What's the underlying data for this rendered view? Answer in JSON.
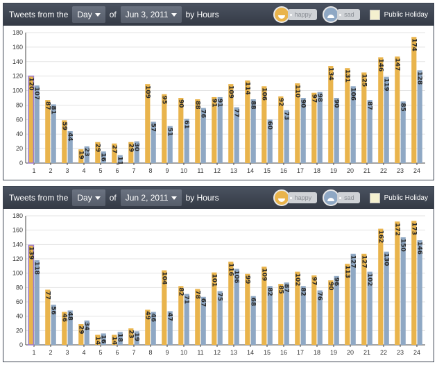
{
  "panels": [
    {
      "toolbar": {
        "prefix": "Tweets from the",
        "period": "Day",
        "of_label": "of",
        "date": "Jun 3, 2011",
        "suffix": "by Hours",
        "happy_label": "happy",
        "sad_label": "sad",
        "holiday_label": "Public Holiday"
      }
    },
    {
      "toolbar": {
        "prefix": "Tweets from the",
        "period": "Day",
        "of_label": "of",
        "date": "Jun 2, 2011",
        "suffix": "by Hours",
        "happy_label": "happy",
        "sad_label": "sad",
        "holiday_label": "Public Holiday"
      }
    }
  ],
  "colors": {
    "happy": "#e9b44c",
    "sad": "#8fa8c4",
    "highlight": "#9b7bd0"
  },
  "chart_data": [
    {
      "type": "bar",
      "categories": [
        1,
        2,
        3,
        4,
        5,
        6,
        7,
        8,
        9,
        10,
        11,
        12,
        13,
        14,
        15,
        16,
        17,
        18,
        19,
        20,
        21,
        22,
        23,
        24
      ],
      "series": [
        {
          "name": "happy",
          "values": [
            120,
            87,
            59,
            19,
            29,
            27,
            29,
            109,
            95,
            90,
            88,
            91,
            109,
            114,
            106,
            92,
            110,
            97,
            134,
            131,
            125,
            146,
            147,
            174
          ]
        },
        {
          "name": "sad",
          "values": [
            107,
            81,
            44,
            23,
            16,
            11,
            30,
            57,
            51,
            61,
            76,
            91,
            77,
            88,
            60,
            73,
            90,
            98,
            90,
            106,
            87,
            119,
            85,
            128
          ]
        }
      ],
      "highlight_index": 0,
      "ylim": [
        0,
        180
      ],
      "yticks": [
        0,
        20,
        40,
        60,
        80,
        100,
        120,
        140,
        160,
        180
      ],
      "grid": true
    },
    {
      "type": "bar",
      "categories": [
        1,
        2,
        3,
        4,
        5,
        6,
        7,
        8,
        9,
        10,
        11,
        12,
        13,
        14,
        15,
        16,
        17,
        18,
        19,
        20,
        21,
        22,
        23,
        24
      ],
      "series": [
        {
          "name": "happy",
          "values": [
            139,
            77,
            46,
            29,
            14,
            14,
            23,
            49,
            104,
            82,
            78,
            101,
            116,
            99,
            109,
            85,
            102,
            97,
            90,
            113,
            127,
            162,
            172,
            173
          ]
        },
        {
          "name": "sad",
          "values": [
            118,
            56,
            48,
            34,
            16,
            18,
            19,
            46,
            47,
            71,
            67,
            75,
            106,
            68,
            82,
            87,
            82,
            76,
            96,
            127,
            102,
            130,
            150,
            146
          ]
        }
      ],
      "highlight_index": 0,
      "ylim": [
        0,
        180
      ],
      "yticks": [
        0,
        20,
        40,
        60,
        80,
        100,
        120,
        140,
        160,
        180
      ],
      "grid": true
    }
  ]
}
